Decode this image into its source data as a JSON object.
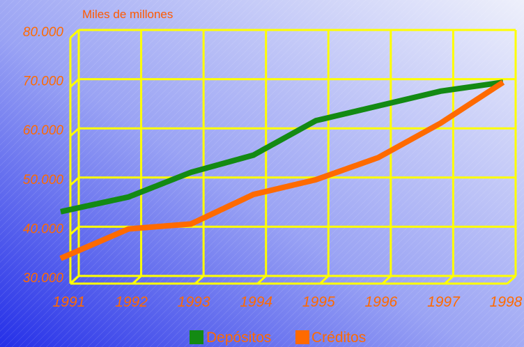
{
  "colors": {
    "background_light": "#e8ecfb",
    "background_dark": "#2530e8",
    "grid": "#ffff00",
    "labels": "#ff6a00",
    "unit_label": "#ff5a00",
    "depositos": "#138a13",
    "creditos": "#ff6a00"
  },
  "chart_data": {
    "type": "line",
    "y_unit_label": "Miles de millones",
    "categories": [
      "1991",
      "1992",
      "1993",
      "1994",
      "1995",
      "1996",
      "1997",
      "1998"
    ],
    "ylim": [
      30000,
      80000
    ],
    "y_ticks": [
      "30.000",
      "40.000",
      "50.000",
      "60.000",
      "70.000",
      "80.000"
    ],
    "y_tick_values": [
      30000,
      40000,
      50000,
      60000,
      70000,
      80000
    ],
    "grid": true,
    "legend_position": "bottom",
    "series": [
      {
        "name": "Depósitos",
        "color": "#138a13",
        "values": [
          44000,
          47000,
          52000,
          55500,
          62500,
          65500,
          68500,
          70300
        ]
      },
      {
        "name": "Créditos",
        "color": "#ff6a00",
        "values": [
          34500,
          40500,
          41500,
          47500,
          50500,
          55000,
          62000,
          70300
        ]
      }
    ]
  }
}
